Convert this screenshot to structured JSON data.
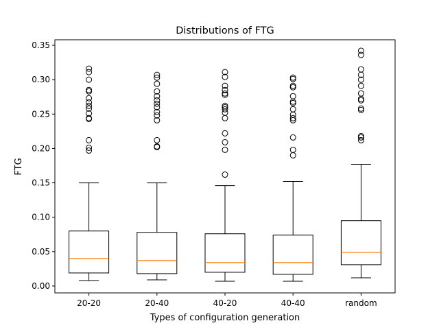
{
  "chart_data": {
    "type": "boxplot",
    "title": "Distributions of FTG",
    "xlabel": "Types of configuration generation",
    "ylabel": "FTG",
    "ylim": [
      -0.01,
      0.358
    ],
    "yticks": [
      "0.00",
      "0.05",
      "0.10",
      "0.15",
      "0.20",
      "0.25",
      "0.30",
      "0.35"
    ],
    "grid": false,
    "colors": {
      "box": "#000000",
      "median": "#ff7f0e",
      "flier": "#000000"
    },
    "categories": [
      "20-20",
      "20-40",
      "40-20",
      "40-40",
      "random"
    ],
    "boxes": [
      {
        "label": "20-20",
        "whisker_low": 0.008,
        "q1": 0.019,
        "median": 0.04,
        "q3": 0.08,
        "whisker_high": 0.15,
        "outliers": [
          0.316,
          0.311,
          0.3,
          0.285,
          0.283,
          0.273,
          0.267,
          0.262,
          0.258,
          0.251,
          0.244,
          0.243,
          0.212,
          0.201,
          0.197
        ]
      },
      {
        "label": "20-40",
        "whisker_low": 0.009,
        "q1": 0.018,
        "median": 0.037,
        "q3": 0.078,
        "whisker_high": 0.15,
        "outliers": [
          0.307,
          0.303,
          0.294,
          0.283,
          0.276,
          0.27,
          0.265,
          0.26,
          0.253,
          0.248,
          0.241,
          0.212,
          0.203,
          0.202
        ]
      },
      {
        "label": "40-20",
        "whisker_low": 0.007,
        "q1": 0.02,
        "median": 0.034,
        "q3": 0.076,
        "whisker_high": 0.146,
        "outliers": [
          0.311,
          0.304,
          0.291,
          0.285,
          0.28,
          0.278,
          0.262,
          0.26,
          0.257,
          0.252,
          0.244,
          0.222,
          0.209,
          0.198,
          0.162
        ]
      },
      {
        "label": "40-40",
        "whisker_low": 0.007,
        "q1": 0.017,
        "median": 0.034,
        "q3": 0.074,
        "whisker_high": 0.152,
        "outliers": [
          0.303,
          0.301,
          0.291,
          0.289,
          0.276,
          0.268,
          0.266,
          0.257,
          0.249,
          0.244,
          0.241,
          0.216,
          0.198,
          0.19
        ]
      },
      {
        "label": "random",
        "whisker_low": 0.012,
        "q1": 0.031,
        "median": 0.049,
        "q3": 0.095,
        "whisker_high": 0.177,
        "outliers": [
          0.342,
          0.336,
          0.315,
          0.307,
          0.3,
          0.291,
          0.28,
          0.272,
          0.27,
          0.258,
          0.256,
          0.218,
          0.216,
          0.212
        ]
      }
    ]
  }
}
